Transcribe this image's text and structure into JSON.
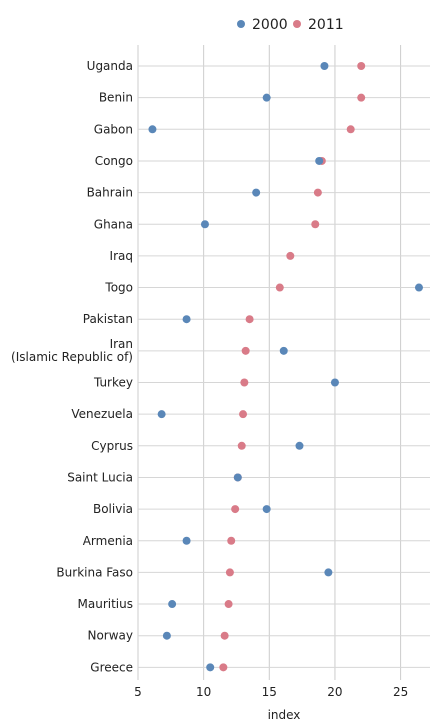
{
  "chart_data": {
    "type": "scatter",
    "xlabel": "index",
    "xlim": [
      5,
      27.5
    ],
    "xticks": [
      "5",
      "10",
      "15",
      "20",
      "25"
    ],
    "xtick_values": [
      5,
      10,
      15,
      20,
      25
    ],
    "grid": true,
    "legend_position": "top-center",
    "categories": [
      "Uganda",
      "Benin",
      "Gabon",
      "Congo",
      "Bahrain",
      "Ghana",
      "Iraq",
      "Togo",
      "Pakistan",
      "Iran\n(Islamic Republic of)",
      "Turkey",
      "Venezuela",
      "Cyprus",
      "Saint Lucia",
      "Bolivia",
      "Armenia",
      "Burkina Faso",
      "Mauritius",
      "Norway",
      "Greece"
    ],
    "series": [
      {
        "name": "2000",
        "color": "#5a87b8",
        "values": [
          19.2,
          14.8,
          6.1,
          18.8,
          14.0,
          10.1,
          null,
          26.4,
          8.7,
          16.1,
          20.0,
          6.8,
          17.3,
          12.6,
          14.8,
          8.7,
          19.5,
          7.6,
          7.2,
          10.5
        ]
      },
      {
        "name": "2011",
        "color": "#d97b88",
        "values": [
          22.0,
          22.0,
          21.2,
          19.0,
          18.7,
          18.5,
          16.6,
          15.8,
          13.5,
          13.2,
          13.1,
          13.0,
          12.9,
          12.6,
          12.4,
          12.1,
          12.0,
          11.9,
          11.6,
          11.5
        ]
      }
    ]
  }
}
